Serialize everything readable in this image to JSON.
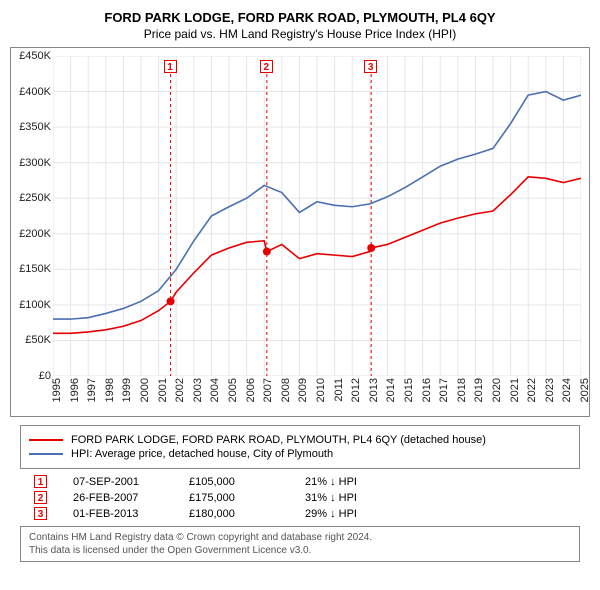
{
  "title": "FORD PARK LODGE, FORD PARK ROAD, PLYMOUTH, PL4 6QY",
  "subtitle": "Price paid vs. HM Land Registry's House Price Index (HPI)",
  "chart": {
    "type": "line",
    "background_color": "#ffffff",
    "grid_color": "#e6e6e6",
    "axis_color": "#888888",
    "x": {
      "min": 1995,
      "max": 2025,
      "ticks": [
        1995,
        1996,
        1997,
        1998,
        1999,
        2000,
        2001,
        2002,
        2003,
        2004,
        2005,
        2006,
        2007,
        2008,
        2009,
        2010,
        2011,
        2012,
        2013,
        2014,
        2015,
        2016,
        2017,
        2018,
        2019,
        2020,
        2021,
        2022,
        2023,
        2024,
        2025
      ]
    },
    "y": {
      "min": 0,
      "max": 450000,
      "ticks": [
        0,
        50000,
        100000,
        150000,
        200000,
        250000,
        300000,
        350000,
        400000,
        450000
      ],
      "tick_labels": [
        "£0",
        "£50K",
        "£100K",
        "£150K",
        "£200K",
        "£250K",
        "£300K",
        "£350K",
        "£400K",
        "£450K"
      ]
    },
    "series": [
      {
        "name": "FORD PARK LODGE, FORD PARK ROAD, PLYMOUTH, PL4 6QY (detached house)",
        "color": "#e60000",
        "line_width": 1.6,
        "data": [
          [
            1995,
            60000
          ],
          [
            1996,
            60000
          ],
          [
            1997,
            62000
          ],
          [
            1998,
            65000
          ],
          [
            1999,
            70000
          ],
          [
            2000,
            78000
          ],
          [
            2001,
            92000
          ],
          [
            2001.68,
            105000
          ],
          [
            2002,
            118000
          ],
          [
            2003,
            145000
          ],
          [
            2004,
            170000
          ],
          [
            2005,
            180000
          ],
          [
            2006,
            188000
          ],
          [
            2007,
            190000
          ],
          [
            2007.15,
            175000
          ],
          [
            2008,
            185000
          ],
          [
            2009,
            165000
          ],
          [
            2010,
            172000
          ],
          [
            2011,
            170000
          ],
          [
            2012,
            168000
          ],
          [
            2013,
            175000
          ],
          [
            2013.08,
            180000
          ],
          [
            2014,
            185000
          ],
          [
            2015,
            195000
          ],
          [
            2016,
            205000
          ],
          [
            2017,
            215000
          ],
          [
            2018,
            222000
          ],
          [
            2019,
            228000
          ],
          [
            2020,
            232000
          ],
          [
            2021,
            255000
          ],
          [
            2022,
            280000
          ],
          [
            2023,
            278000
          ],
          [
            2024,
            272000
          ],
          [
            2025,
            278000
          ]
        ]
      },
      {
        "name": "HPI: Average price, detached house, City of Plymouth",
        "color": "#4a6fb3",
        "line_width": 1.6,
        "data": [
          [
            1995,
            80000
          ],
          [
            1996,
            80000
          ],
          [
            1997,
            82000
          ],
          [
            1998,
            88000
          ],
          [
            1999,
            95000
          ],
          [
            2000,
            105000
          ],
          [
            2001,
            120000
          ],
          [
            2002,
            150000
          ],
          [
            2003,
            190000
          ],
          [
            2004,
            225000
          ],
          [
            2005,
            238000
          ],
          [
            2006,
            250000
          ],
          [
            2007,
            268000
          ],
          [
            2008,
            258000
          ],
          [
            2009,
            230000
          ],
          [
            2010,
            245000
          ],
          [
            2011,
            240000
          ],
          [
            2012,
            238000
          ],
          [
            2013,
            242000
          ],
          [
            2014,
            252000
          ],
          [
            2015,
            265000
          ],
          [
            2016,
            280000
          ],
          [
            2017,
            295000
          ],
          [
            2018,
            305000
          ],
          [
            2019,
            312000
          ],
          [
            2020,
            320000
          ],
          [
            2021,
            355000
          ],
          [
            2022,
            395000
          ],
          [
            2023,
            400000
          ],
          [
            2024,
            388000
          ],
          [
            2025,
            395000
          ]
        ]
      }
    ],
    "sale_markers": [
      {
        "idx": "1",
        "x": 2001.68,
        "y": 105000,
        "color": "#e60000"
      },
      {
        "idx": "2",
        "x": 2007.15,
        "y": 175000,
        "color": "#e60000"
      },
      {
        "idx": "3",
        "x": 2013.08,
        "y": 180000,
        "color": "#e60000"
      }
    ],
    "label_fontsize": 11,
    "title_fontsize": 13
  },
  "legend": [
    {
      "label": "FORD PARK LODGE, FORD PARK ROAD, PLYMOUTH, PL4 6QY (detached house)",
      "color": "#e60000"
    },
    {
      "label": "HPI: Average price, detached house, City of Plymouth",
      "color": "#4a6fb3"
    }
  ],
  "sales": [
    {
      "idx": "1",
      "date": "07-SEP-2001",
      "price": "£105,000",
      "diff": "21% ↓ HPI",
      "color": "#e60000"
    },
    {
      "idx": "2",
      "date": "26-FEB-2007",
      "price": "£175,000",
      "diff": "31% ↓ HPI",
      "color": "#e60000"
    },
    {
      "idx": "3",
      "date": "01-FEB-2013",
      "price": "£180,000",
      "diff": "29% ↓ HPI",
      "color": "#e60000"
    }
  ],
  "footer": {
    "line1": "Contains HM Land Registry data © Crown copyright and database right 2024.",
    "line2": "This data is licensed under the Open Government Licence v3.0."
  }
}
